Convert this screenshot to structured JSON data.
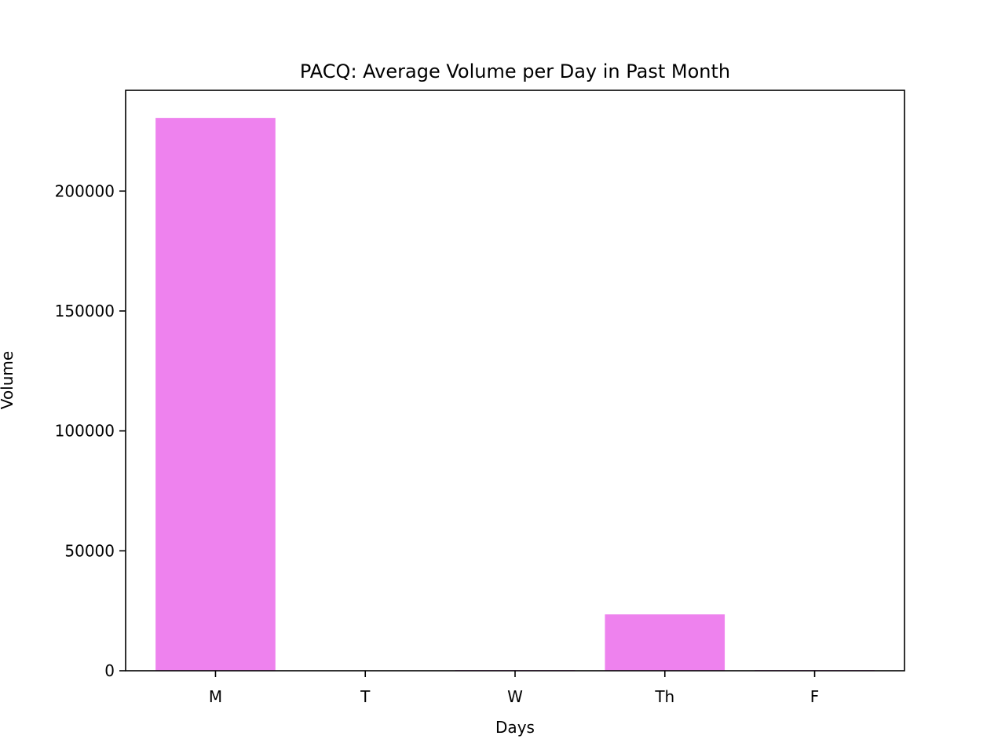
{
  "chart_data": {
    "type": "bar",
    "title": "PACQ: Average Volume per Day in Past Month",
    "xlabel": "Days",
    "ylabel": "Volume",
    "categories": [
      "M",
      "T",
      "W",
      "Th",
      "F"
    ],
    "values": [
      230500,
      0,
      300,
      23500,
      300
    ],
    "ylim": [
      0,
      242000
    ],
    "yticks": [
      0,
      50000,
      100000,
      150000,
      200000
    ],
    "ytick_labels": [
      "0",
      "50000",
      "100000",
      "150000",
      "200000"
    ],
    "grid": false,
    "legend": "none",
    "bar_color": "#ee82ee"
  }
}
